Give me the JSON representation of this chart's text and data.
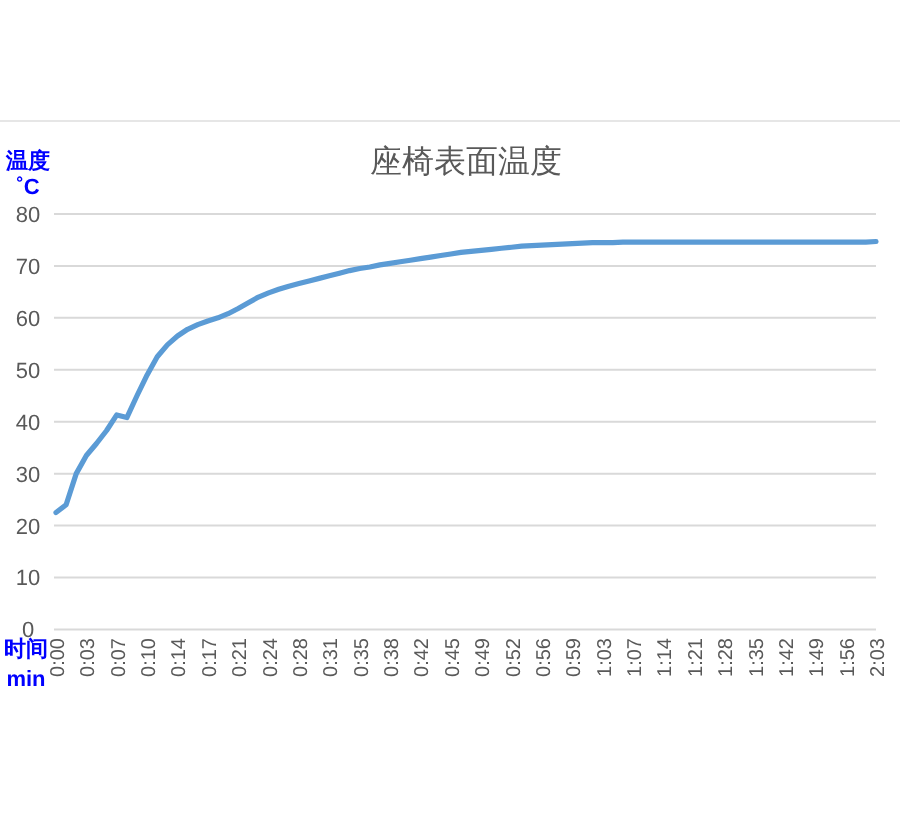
{
  "chart_data": {
    "type": "line",
    "title": "座椅表面温度",
    "ylabel": "温度 ˚C",
    "xlabel": "时间 min",
    "categories": [
      "0:00",
      null,
      null,
      "0:03",
      null,
      null,
      "0:07",
      null,
      null,
      "0:10",
      null,
      null,
      "0:14",
      null,
      null,
      "0:17",
      null,
      null,
      "0:21",
      null,
      null,
      "0:24",
      null,
      null,
      "0:28",
      null,
      null,
      "0:31",
      null,
      null,
      "0:35",
      null,
      null,
      "0:38",
      null,
      null,
      "0:42",
      null,
      null,
      "0:45",
      null,
      null,
      "0:49",
      null,
      null,
      "0:52",
      null,
      null,
      "0:56",
      null,
      null,
      "0:59",
      null,
      null,
      "1:03",
      null,
      null,
      "1:07",
      null,
      null,
      "1:14",
      null,
      null,
      "1:21",
      null,
      null,
      "1:28",
      null,
      null,
      "1:35",
      null,
      null,
      "1:42",
      null,
      null,
      "1:49",
      null,
      null,
      "1:56",
      null,
      null,
      "2:03"
    ],
    "series": [
      {
        "color": "#5b9bd5",
        "values": [
          22.5,
          24.0,
          30.0,
          33.5,
          35.8,
          38.3,
          41.3,
          40.8,
          45.0,
          49.0,
          52.5,
          54.8,
          56.5,
          57.8,
          58.7,
          59.4,
          60.0,
          60.8,
          61.8,
          62.9,
          64.0,
          64.8,
          65.5,
          66.1,
          66.6,
          67.1,
          67.6,
          68.1,
          68.6,
          69.1,
          69.5,
          69.8,
          70.2,
          70.5,
          70.8,
          71.1,
          71.4,
          71.7,
          72.0,
          72.3,
          72.6,
          72.8,
          73.0,
          73.2,
          73.4,
          73.6,
          73.8,
          73.9,
          74.0,
          74.1,
          74.2,
          74.3,
          74.4,
          74.5,
          74.5,
          74.5,
          74.6,
          74.6,
          74.6,
          74.6,
          74.6,
          74.6,
          74.6,
          74.6,
          74.6,
          74.6,
          74.6,
          74.6,
          74.6,
          74.6,
          74.6,
          74.6,
          74.6,
          74.6,
          74.6,
          74.6,
          74.6,
          74.6,
          74.6,
          74.6,
          74.6,
          74.7
        ]
      }
    ],
    "ylim": [
      0,
      80
    ],
    "yticks": [
      0,
      10,
      20,
      30,
      40,
      50,
      60,
      70,
      80
    ],
    "grid": "y"
  }
}
